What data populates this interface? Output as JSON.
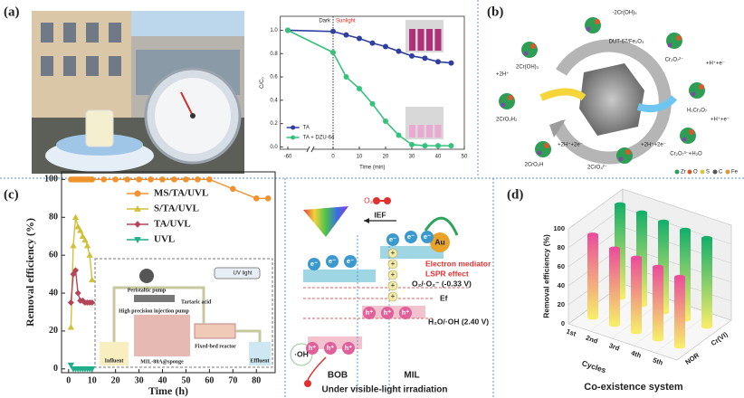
{
  "panel_labels": [
    "(a)",
    "(b)",
    "(c)",
    "(d)"
  ],
  "chart_data": [
    {
      "type": "line",
      "xlabel": "Time (min)",
      "ylabel": "C/C₀",
      "x": [
        -60,
        0,
        5,
        10,
        15,
        20,
        25,
        30,
        35,
        40,
        45
      ],
      "series": [
        {
          "name": "TA",
          "color": "#2f3fa0",
          "values": [
            1.0,
            0.99,
            0.96,
            0.93,
            0.89,
            0.86,
            0.82,
            0.78,
            0.76,
            0.73,
            0.72
          ]
        },
        {
          "name": "TA + DZU-64",
          "color": "#34c27c",
          "values": [
            1.0,
            0.81,
            0.6,
            0.5,
            0.37,
            0.22,
            0.1,
            0.02,
            0.01,
            0.01,
            0.01
          ]
        }
      ],
      "xlim": [
        -70,
        50
      ],
      "xticks": [
        -60,
        0,
        10,
        20,
        30,
        40,
        50
      ],
      "xbreak": true,
      "ylim": [
        -0.02,
        1.12
      ],
      "yticks": [
        {
          "value": 0,
          "label": "0.0"
        },
        0.2,
        0.4,
        0.6,
        0.8,
        {
          "value": 1,
          "label": "1.0"
        }
      ],
      "annotations": [
        {
          "text": "Dark",
          "color": "#222"
        },
        {
          "text": "Sunlight",
          "color": "#e0261e"
        }
      ],
      "legend": "lower left"
    },
    {
      "type": "line",
      "xlabel": "Time (h)",
      "ylabel": "Removal efficiency (%)",
      "series": [
        {
          "name": "MS/TA/UVL",
          "color": "#f0922e",
          "marker": "circle",
          "x": [
            1,
            2,
            3,
            4,
            5,
            6,
            7,
            8,
            9,
            10,
            15,
            20,
            25,
            30,
            35,
            40,
            45,
            50,
            55,
            60,
            70,
            80,
            85
          ],
          "values": [
            100,
            100,
            100,
            100,
            100,
            100,
            100,
            100,
            100,
            100,
            100,
            100,
            100,
            100,
            100,
            100,
            100,
            100,
            100,
            100,
            95,
            90,
            90
          ]
        },
        {
          "name": "S/TA/UVL",
          "color": "#cfc23a",
          "marker": "triangle",
          "x": [
            1,
            2,
            3,
            4,
            5,
            6,
            7,
            8,
            9,
            10
          ],
          "values": [
            22,
            65,
            80,
            75,
            73,
            70,
            68,
            65,
            60,
            47
          ]
        },
        {
          "name": "TA/UVL",
          "color": "#b5455a",
          "marker": "diamond",
          "x": [
            1,
            2,
            3,
            4,
            5,
            6,
            7,
            8,
            9,
            10
          ],
          "values": [
            35,
            50,
            52,
            40,
            36,
            36,
            35,
            35,
            35,
            35
          ]
        },
        {
          "name": "UVL",
          "color": "#1fae8a",
          "marker": "triangle-down",
          "x": [
            1,
            2,
            3,
            4,
            5,
            6,
            7,
            8,
            9,
            10
          ],
          "values": [
            2,
            0,
            0,
            0,
            0,
            0,
            0,
            0,
            0,
            0
          ]
        }
      ],
      "xlim": [
        -3,
        88
      ],
      "xticks": [
        0,
        10,
        20,
        30,
        40,
        50,
        60,
        70,
        80
      ],
      "ylim": [
        -2,
        104
      ],
      "yticks": [
        0,
        20,
        40,
        60,
        80,
        100
      ],
      "legend": "upper center"
    },
    {
      "type": "bar3d",
      "title": "Co-existence system",
      "xlabel": "Cycles",
      "zlabel": "Removal efficiency (%)",
      "categories": [
        "1st",
        "2nd",
        "3rd",
        "4th",
        "5th"
      ],
      "series": [
        {
          "name": "NOR",
          "color": "#ec4f9a",
          "values": [
            87,
            80,
            78,
            76,
            73
          ]
        },
        {
          "name": "Cr(VI)",
          "color": "#17b06a",
          "values": [
            98,
            97,
            95,
            94,
            93
          ]
        }
      ],
      "zlim": [
        0,
        100
      ],
      "zticks": [
        0,
        20,
        40,
        60,
        80,
        100
      ],
      "base_color": "#f6ec6a"
    }
  ],
  "panel_b": {
    "center": "DUT-67/Fe₂O₃",
    "steps": [
      "-2Cr(OH)₃",
      "Cr₂O₇²⁻",
      "+H⁺+e⁻",
      "H₂Cr₂O₇",
      "+H⁺+e⁻",
      "Cr₂O₇³⁻+H₂O",
      "+2H⁺+2e⁻",
      "2CrO₄²⁻",
      "+2H⁺+2e⁻",
      "2CrO₂H",
      "2CrO₂H₂",
      "+2H⁺",
      "2Cr(OH)₃"
    ],
    "legend": [
      "Zr",
      "O",
      "S",
      "C",
      "Fe"
    ]
  },
  "panel_c_inset": [
    "UV light",
    "Peristaltic pump",
    "Tartaric acid",
    "High precision injection pump",
    "Influent",
    "MIL-88A@sponge",
    "Fixed-bed reactor",
    "Effluent"
  ],
  "mechanism": {
    "ief": "IEF",
    "o2": "O₂",
    "superoxide": "·O₂⁻",
    "au": "Au",
    "mediator": "Electron mediator",
    "lspr": "LSPR effect",
    "cb_potential": "O₂/·O₂⁻ (-0.33 V)",
    "fermi": "Ef",
    "vb_potential": "H₂O/·OH (2.40 V)",
    "hydroxyl": "·OH",
    "bob": "BOB",
    "mil": "MIL",
    "caption": "Under visible-light irradiation",
    "electron": "e⁻",
    "hole": "h⁺",
    "plus": "+"
  }
}
